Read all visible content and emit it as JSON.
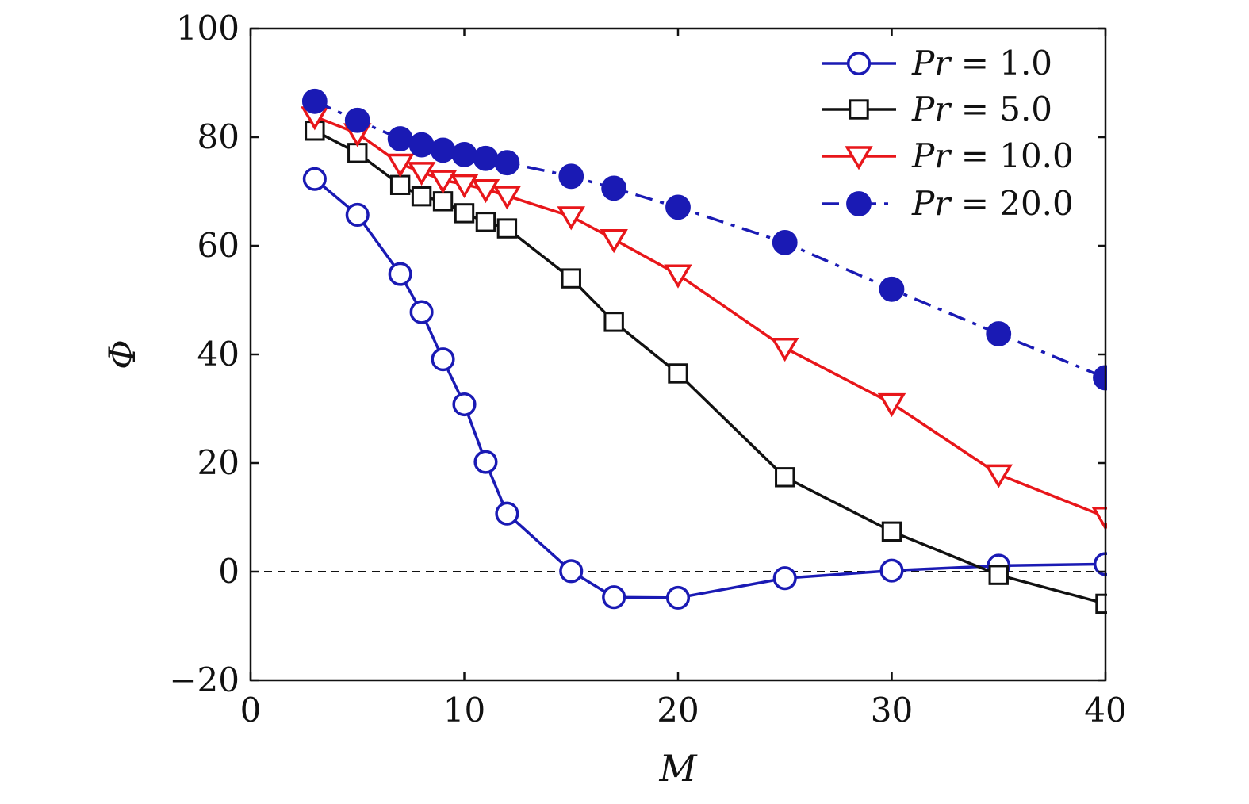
{
  "chart_data": {
    "type": "line",
    "xlabel": "M",
    "ylabel": "Φ",
    "xlim": [
      0,
      40
    ],
    "ylim": [
      -20,
      100
    ],
    "xticks": [
      0,
      10,
      20,
      30,
      40
    ],
    "yticks": [
      -20,
      0,
      20,
      40,
      60,
      80,
      100
    ],
    "xtick_labels": [
      "0",
      "10",
      "20",
      "30",
      "40"
    ],
    "ytick_labels": [
      "−20",
      "0",
      "20",
      "40",
      "60",
      "80",
      "100"
    ],
    "grid": false,
    "legend_position": "top-right",
    "reference_line": {
      "y": 0,
      "style": "dashed",
      "color": "#111111"
    },
    "series": [
      {
        "name": "Pr = 1.0",
        "legend_var": "Pr",
        "legend_value": "1.0",
        "color": "#1a1ab4",
        "marker": "circle-open",
        "line": "solid",
        "x": [
          3,
          5,
          7,
          8,
          9,
          10,
          11,
          12,
          15,
          17,
          20,
          25,
          30,
          35,
          40
        ],
        "y": [
          72.3,
          65.7,
          54.8,
          47.8,
          39.1,
          30.8,
          20.2,
          10.7,
          0.1,
          -4.7,
          -4.8,
          -1.2,
          0.2,
          1.1,
          1.4
        ]
      },
      {
        "name": "Pr = 5.0",
        "legend_var": "Pr",
        "legend_value": "5.0",
        "color": "#111111",
        "marker": "square-open",
        "line": "solid",
        "x": [
          3,
          5,
          7,
          8,
          9,
          10,
          11,
          12,
          15,
          17,
          20,
          25,
          30,
          35,
          40
        ],
        "y": [
          81.2,
          77.1,
          71.2,
          69.1,
          68.2,
          66.0,
          64.4,
          63.2,
          54.0,
          46.0,
          36.5,
          17.4,
          7.4,
          -0.6,
          -5.9
        ]
      },
      {
        "name": "Pr = 10.0",
        "legend_var": "Pr",
        "legend_value": "10.0",
        "color": "#e8161a",
        "marker": "triangle-down-open",
        "line": "solid",
        "x": [
          3,
          5,
          7,
          8,
          9,
          10,
          11,
          12,
          15,
          17,
          20,
          25,
          30,
          35,
          40
        ],
        "y": [
          83.8,
          80.7,
          75.1,
          73.6,
          72.1,
          71.3,
          70.4,
          69.2,
          65.4,
          61.2,
          54.7,
          41.2,
          31.0,
          17.9,
          10.1
        ]
      },
      {
        "name": "Pr = 20.0",
        "legend_var": "Pr",
        "legend_value": "20.0",
        "color": "#1a1ab4",
        "marker": "circle-filled",
        "line": "dashdot",
        "x": [
          3,
          5,
          7,
          8,
          9,
          10,
          11,
          12,
          15,
          17,
          20,
          25,
          30,
          35,
          40
        ],
        "y": [
          86.6,
          83.1,
          79.7,
          78.6,
          77.6,
          76.8,
          76.1,
          75.3,
          72.8,
          70.6,
          67.1,
          60.6,
          52.0,
          43.8,
          35.7
        ]
      }
    ]
  }
}
